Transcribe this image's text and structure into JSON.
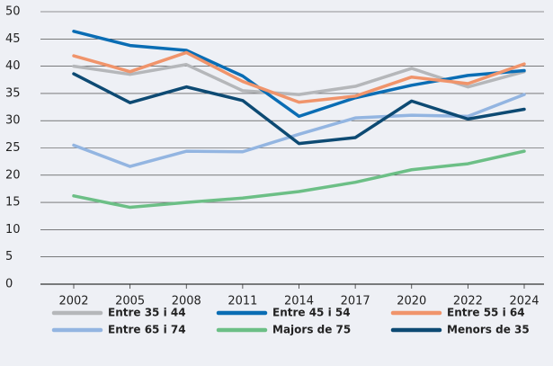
{
  "chart_data": {
    "type": "line",
    "categories": [
      "2002",
      "2005",
      "2008",
      "2011",
      "2014",
      "2017",
      "2020",
      "2022",
      "2024"
    ],
    "series": [
      {
        "name": "Entre 35 i 44",
        "color": "#b5b7ba",
        "values": [
          40,
          38.5,
          40.3,
          35.5,
          34.8,
          36.3,
          39.6,
          36.2,
          39
        ]
      },
      {
        "name": "Entre 45 i 54",
        "color": "#0a6db4",
        "values": [
          46.4,
          43.8,
          42.9,
          38.2,
          30.8,
          34.2,
          36.5,
          38.3,
          39.2
        ]
      },
      {
        "name": "Entre 55 i 64",
        "color": "#f0946b",
        "values": [
          41.9,
          39,
          42.5,
          37.2,
          33.4,
          34.5,
          38,
          36.8,
          40.4
        ]
      },
      {
        "name": "Entre 65 i 74",
        "color": "#93b5e1",
        "values": [
          25.5,
          21.6,
          24.4,
          24.3,
          27.5,
          30.5,
          31,
          30.8,
          34.8
        ]
      },
      {
        "name": "Majors de 75",
        "color": "#6cbf86",
        "values": [
          16.2,
          14.1,
          15,
          15.8,
          17,
          18.7,
          21,
          22.1,
          24.4
        ]
      },
      {
        "name": "Menors de 35",
        "color": "#0d4a73",
        "values": [
          38.6,
          33.3,
          36.2,
          33.7,
          25.8,
          26.9,
          33.6,
          30.3,
          32.1
        ]
      }
    ],
    "ylim": [
      0,
      50
    ],
    "yticks": [
      0,
      5,
      10,
      15,
      20,
      25,
      30,
      35,
      40,
      45,
      50
    ],
    "grid": true
  }
}
